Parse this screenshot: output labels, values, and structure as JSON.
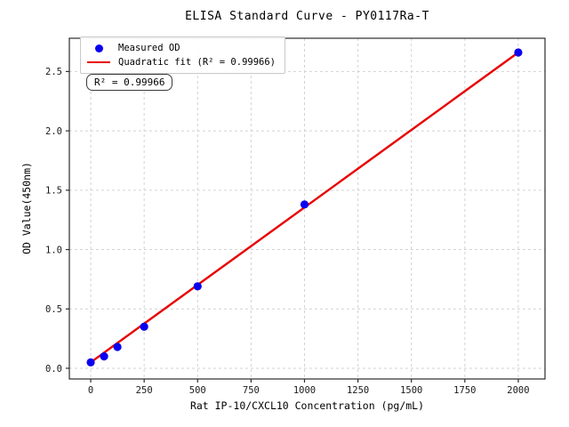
{
  "figure": {
    "background": "#ffffff"
  },
  "chart_data": {
    "type": "scatter",
    "title": "ELISA Standard Curve - PY0117Ra-T",
    "xlabel": "Rat IP-10/CXCL10 Concentration (pg/mL)",
    "ylabel": "OD Value(450nm)",
    "x": [
      0,
      62.5,
      125,
      250,
      500,
      1000,
      2000
    ],
    "y": [
      0.05,
      0.1,
      0.18,
      0.35,
      0.69,
      1.38,
      2.66
    ],
    "series_name": "Measured OD",
    "fit": {
      "label": "Quadratic fit",
      "r_squared": 0.99966,
      "line_x": [
        0,
        2000
      ],
      "line_y": [
        0.05,
        2.66
      ]
    },
    "xticks": [
      0,
      250,
      500,
      750,
      1000,
      1250,
      1500,
      1750,
      2000
    ],
    "yticks": [
      0.0,
      0.5,
      1.0,
      1.5,
      2.0,
      2.5
    ],
    "xlim": [
      -100,
      2125
    ],
    "ylim": [
      -0.09,
      2.78
    ],
    "grid": true,
    "grid_style": "dashed",
    "legend_position": "upper left"
  },
  "legend": {
    "items": [
      {
        "label": "Measured OD",
        "marker": "dot"
      },
      {
        "label": "Quadratic fit (R² = 0.99966)",
        "marker": "line"
      }
    ]
  },
  "annotation": {
    "text": "R² = 0.99966"
  },
  "colors": {
    "marker": "#0a00f0",
    "fit_line": "#e80000",
    "grid": "#d2d2d2",
    "spine": "#2b2b2b",
    "tick_text": "#1a1a1a",
    "text": "#000000"
  }
}
